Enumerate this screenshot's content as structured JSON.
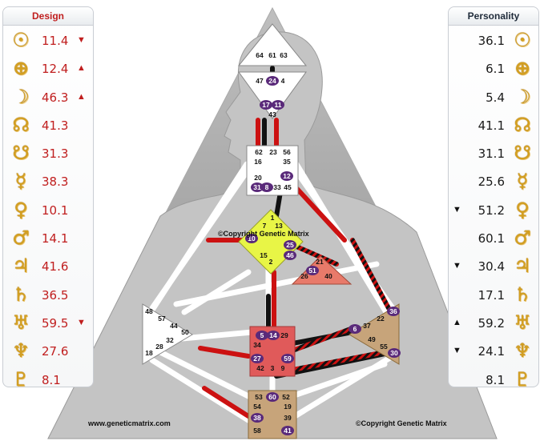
{
  "design": {
    "title": "Design",
    "rows": [
      {
        "glyph": "☉",
        "value": "11.4",
        "arrow": "▼"
      },
      {
        "glyph": "⊕",
        "value": "12.4",
        "arrow": "▲"
      },
      {
        "glyph": "☽",
        "value": "46.3",
        "arrow": "▲"
      },
      {
        "glyph": "☊",
        "value": "41.3",
        "arrow": ""
      },
      {
        "glyph": "☋",
        "value": "31.3",
        "arrow": ""
      },
      {
        "glyph": "☿",
        "value": "38.3",
        "arrow": ""
      },
      {
        "glyph": "♀",
        "value": "10.1",
        "arrow": ""
      },
      {
        "glyph": "♂",
        "value": "14.1",
        "arrow": ""
      },
      {
        "glyph": "♃",
        "value": "41.6",
        "arrow": ""
      },
      {
        "glyph": "♄",
        "value": "36.5",
        "arrow": ""
      },
      {
        "glyph": "♅",
        "value": "59.5",
        "arrow": "▼"
      },
      {
        "glyph": "♆",
        "value": "27.6",
        "arrow": ""
      },
      {
        "glyph": "♇",
        "value": "8.1",
        "arrow": ""
      }
    ]
  },
  "personality": {
    "title": "Personality",
    "rows": [
      {
        "glyph": "☉",
        "value": "36.1",
        "arrow": ""
      },
      {
        "glyph": "⊕",
        "value": "6.1",
        "arrow": ""
      },
      {
        "glyph": "☽",
        "value": "5.4",
        "arrow": ""
      },
      {
        "glyph": "☊",
        "value": "41.1",
        "arrow": ""
      },
      {
        "glyph": "☋",
        "value": "31.1",
        "arrow": ""
      },
      {
        "glyph": "☿",
        "value": "25.6",
        "arrow": ""
      },
      {
        "glyph": "♀",
        "value": "51.2",
        "arrow": "▼"
      },
      {
        "glyph": "♂",
        "value": "60.1",
        "arrow": ""
      },
      {
        "glyph": "♃",
        "value": "30.4",
        "arrow": "▼"
      },
      {
        "glyph": "♄",
        "value": "17.1",
        "arrow": ""
      },
      {
        "glyph": "♅",
        "value": "59.2",
        "arrow": "▲"
      },
      {
        "glyph": "♆",
        "value": "24.1",
        "arrow": "▼"
      },
      {
        "glyph": "♇",
        "value": "8.1",
        "arrow": ""
      }
    ]
  },
  "chart": {
    "watermark_left": "www.geneticmatrix.com",
    "watermark_right": "©Copyright Genetic Matrix",
    "copyright_center": "©Copyright Genetic Matrix",
    "gates": {
      "head": [
        "64",
        "61",
        "63"
      ],
      "ajna": [
        "47",
        "24",
        "4",
        "17",
        "11",
        "43"
      ],
      "throat": [
        "62",
        "23",
        "56",
        "16",
        "35",
        "20",
        "12",
        "31",
        "8",
        "33",
        "45"
      ],
      "g": [
        "1",
        "7",
        "13",
        "10",
        "25",
        "15",
        "46",
        "2"
      ],
      "ego": [
        "21",
        "51",
        "26",
        "40"
      ],
      "spleen": [
        "48",
        "57",
        "44",
        "50",
        "32",
        "28",
        "18"
      ],
      "sacral": [
        "5",
        "14",
        "29",
        "34",
        "27",
        "59",
        "42",
        "3",
        "9"
      ],
      "solar_plexus": [
        "36",
        "22",
        "37",
        "6",
        "49",
        "55",
        "30"
      ],
      "root": [
        "53",
        "60",
        "52",
        "54",
        "19",
        "38",
        "39",
        "58",
        "41"
      ]
    },
    "colors": {
      "design": "#cc1111",
      "personality": "#111111",
      "defined_body": "#ffffff",
      "mountain": "#9d9d9d"
    }
  }
}
